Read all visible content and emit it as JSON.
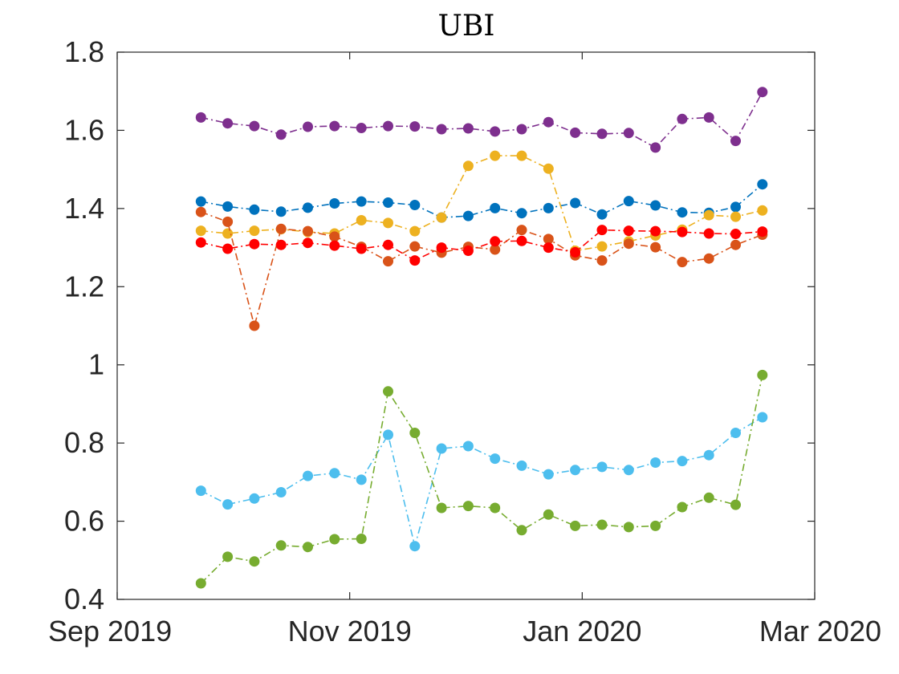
{
  "chart_data": {
    "type": "line",
    "title": "UBI",
    "xlabel": "",
    "ylabel": "",
    "grid": false,
    "legend": "none",
    "xlim": [
      0,
      6
    ],
    "ylim": [
      0.4,
      1.8
    ],
    "x_ticks": [
      {
        "value": 0,
        "label": "Sep 2019"
      },
      {
        "value": 2,
        "label": "Nov 2019"
      },
      {
        "value": 4,
        "label": "Jan 2020"
      },
      {
        "value": 6,
        "label": "Mar 2020"
      }
    ],
    "y_ticks": [
      {
        "value": 0.4,
        "label": "0.4"
      },
      {
        "value": 0.6,
        "label": "0.6"
      },
      {
        "value": 0.8,
        "label": "0.8"
      },
      {
        "value": 1.0,
        "label": "1"
      },
      {
        "value": 1.2,
        "label": "1.2"
      },
      {
        "value": 1.4,
        "label": "1.4"
      },
      {
        "value": 1.6,
        "label": "1.6"
      },
      {
        "value": 1.8,
        "label": "1.8"
      }
    ],
    "x": [
      0.72,
      0.95,
      1.18,
      1.41,
      1.64,
      1.87,
      2.1,
      2.33,
      2.56,
      2.79,
      3.02,
      3.25,
      3.48,
      3.71,
      3.94,
      4.17,
      4.4,
      4.63,
      4.86,
      5.09,
      5.32,
      5.55
    ],
    "series": [
      {
        "name": "purple",
        "color": "#7E2F8E",
        "values": [
          1.633,
          1.618,
          1.611,
          1.589,
          1.609,
          1.611,
          1.606,
          1.611,
          1.61,
          1.603,
          1.605,
          1.597,
          1.603,
          1.621,
          1.594,
          1.591,
          1.593,
          1.556,
          1.629,
          1.633,
          1.573,
          1.698
        ]
      },
      {
        "name": "blue",
        "color": "#0072BD",
        "values": [
          1.418,
          1.405,
          1.397,
          1.392,
          1.402,
          1.413,
          1.418,
          1.415,
          1.409,
          1.377,
          1.381,
          1.401,
          1.388,
          1.401,
          1.414,
          1.385,
          1.419,
          1.408,
          1.39,
          1.389,
          1.404,
          1.462
        ]
      },
      {
        "name": "yellow",
        "color": "#EDB120",
        "values": [
          1.343,
          1.336,
          1.343,
          1.347,
          1.34,
          1.336,
          1.37,
          1.363,
          1.342,
          1.377,
          1.509,
          1.535,
          1.535,
          1.502,
          1.292,
          1.303,
          1.316,
          1.331,
          1.346,
          1.383,
          1.379,
          1.395
        ]
      },
      {
        "name": "orange",
        "color": "#D95319",
        "values": [
          1.391,
          1.366,
          1.1,
          1.348,
          1.342,
          1.328,
          1.302,
          1.265,
          1.303,
          1.287,
          1.302,
          1.295,
          1.345,
          1.322,
          1.28,
          1.267,
          1.31,
          1.301,
          1.263,
          1.272,
          1.307,
          1.333
        ]
      },
      {
        "name": "red",
        "color": "#FF0000",
        "values": [
          1.313,
          1.297,
          1.309,
          1.307,
          1.312,
          1.305,
          1.297,
          1.307,
          1.267,
          1.3,
          1.292,
          1.316,
          1.317,
          1.3,
          1.288,
          1.345,
          1.343,
          1.342,
          1.34,
          1.336,
          1.335,
          1.341
        ]
      },
      {
        "name": "light-blue",
        "color": "#4DBEEE",
        "values": [
          0.678,
          0.643,
          0.658,
          0.674,
          0.716,
          0.723,
          0.706,
          0.821,
          0.536,
          0.786,
          0.792,
          0.76,
          0.742,
          0.72,
          0.731,
          0.739,
          0.731,
          0.75,
          0.754,
          0.769,
          0.826,
          0.866
        ]
      },
      {
        "name": "green",
        "color": "#77AC30",
        "values": [
          0.441,
          0.509,
          0.497,
          0.538,
          0.534,
          0.554,
          0.555,
          0.932,
          0.826,
          0.634,
          0.639,
          0.634,
          0.577,
          0.617,
          0.588,
          0.591,
          0.585,
          0.588,
          0.636,
          0.66,
          0.642,
          0.974
        ]
      }
    ]
  }
}
